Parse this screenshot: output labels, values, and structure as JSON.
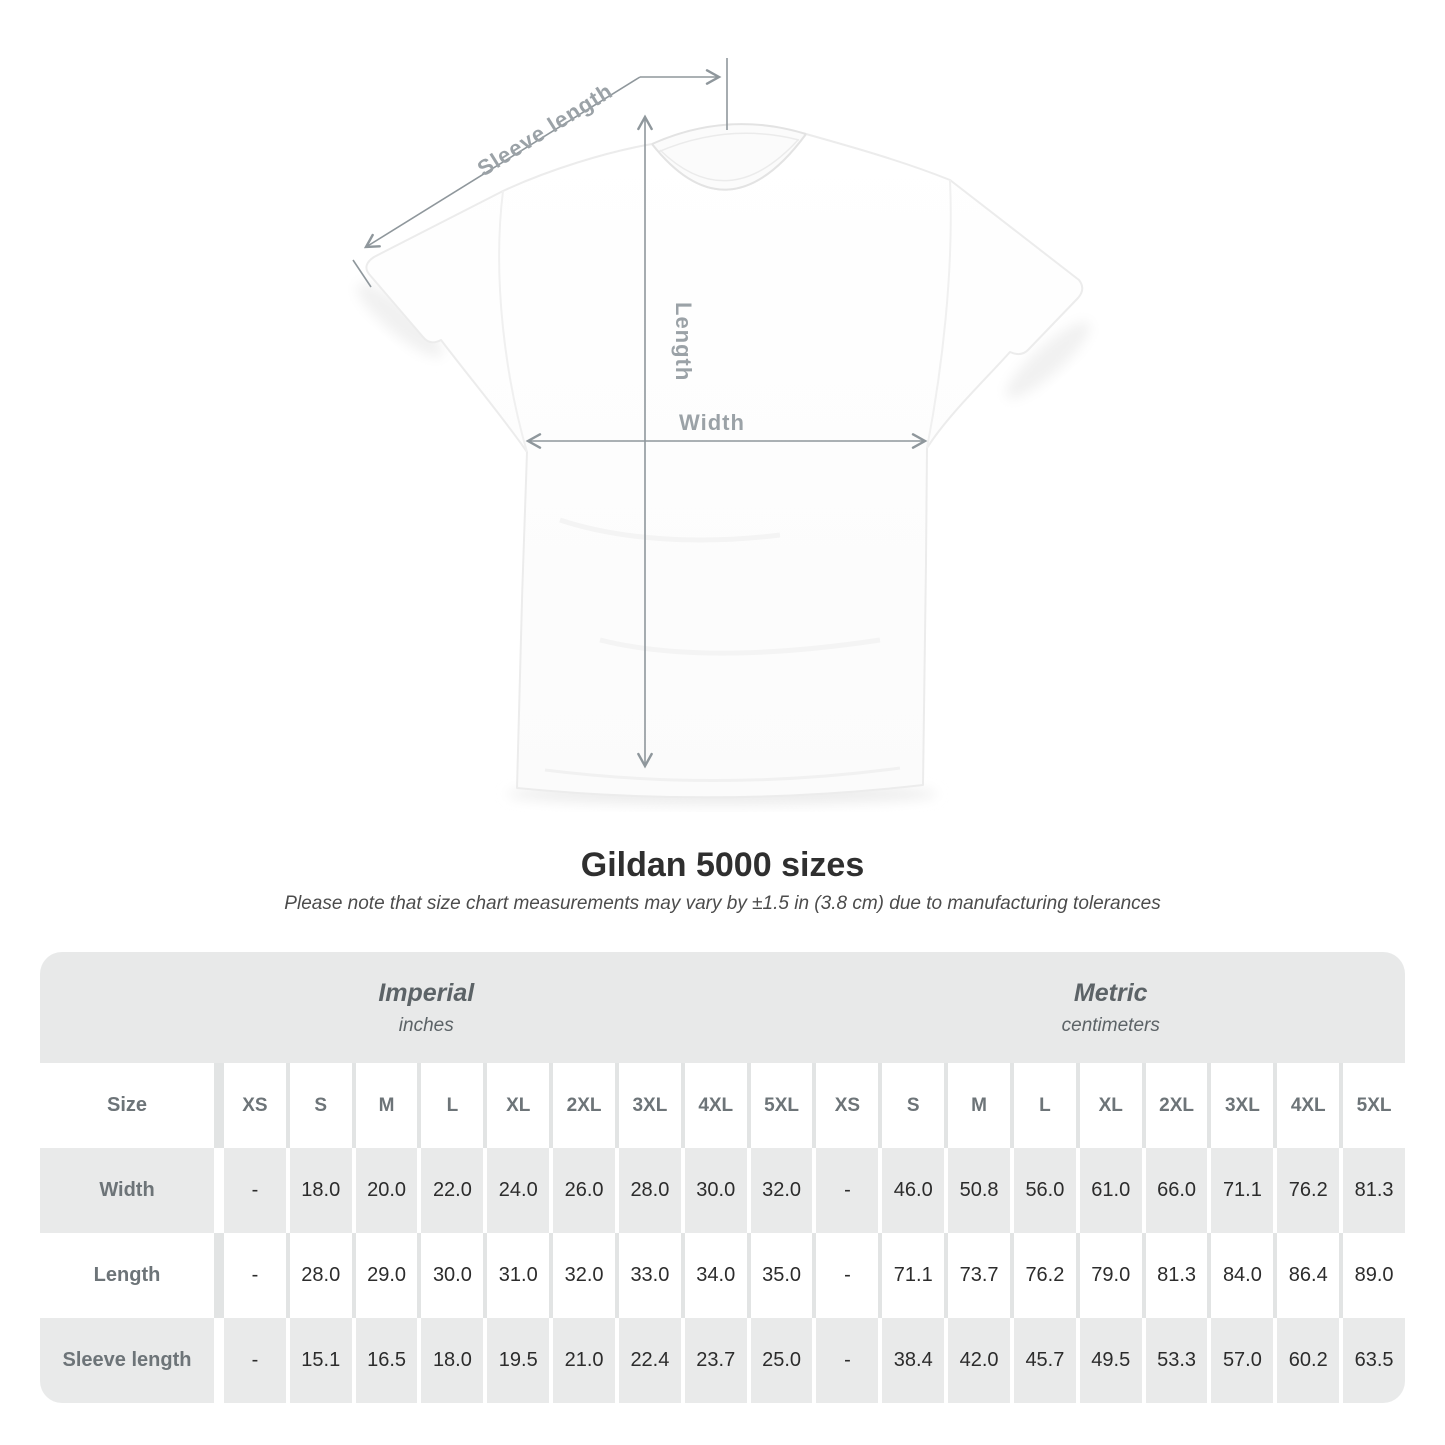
{
  "diagram": {
    "sleeve_length_label": "Sleeve length",
    "length_label": "Length",
    "width_label": "Width"
  },
  "title": "Gildan 5000 sizes",
  "subtitle": "Please note that size chart measurements may vary by ±1.5 in (3.8 cm) due to manufacturing tolerances",
  "table": {
    "unit_groups": [
      {
        "name": "Imperial",
        "unit": "inches"
      },
      {
        "name": "Metric",
        "unit": "centimeters"
      }
    ],
    "size_label": "Size",
    "sizes": [
      "XS",
      "S",
      "M",
      "L",
      "XL",
      "2XL",
      "3XL",
      "4XL",
      "5XL"
    ],
    "rows": [
      {
        "label": "Width",
        "imperial": [
          "-",
          "18.0",
          "20.0",
          "22.0",
          "24.0",
          "26.0",
          "28.0",
          "30.0",
          "32.0"
        ],
        "metric": [
          "-",
          "46.0",
          "50.8",
          "56.0",
          "61.0",
          "66.0",
          "71.1",
          "76.2",
          "81.3"
        ]
      },
      {
        "label": "Length",
        "imperial": [
          "-",
          "28.0",
          "29.0",
          "30.0",
          "31.0",
          "32.0",
          "33.0",
          "34.0",
          "35.0"
        ],
        "metric": [
          "-",
          "71.1",
          "73.7",
          "76.2",
          "79.0",
          "81.3",
          "84.0",
          "86.4",
          "89.0"
        ]
      },
      {
        "label": "Sleeve length",
        "imperial": [
          "-",
          "15.1",
          "16.5",
          "18.0",
          "19.5",
          "21.0",
          "22.4",
          "23.7",
          "25.0"
        ],
        "metric": [
          "-",
          "38.4",
          "42.0",
          "45.7",
          "49.5",
          "53.3",
          "57.0",
          "60.2",
          "63.5"
        ]
      }
    ]
  },
  "colors": {
    "table_cell_gray": "#e9eaea",
    "table_header_gray": "#e8e9e9",
    "dimension_line_gray": "#8f979c",
    "dimension_label_gray": "#9ba2a7",
    "title_dark": "#2f2f2f"
  },
  "chart_data": {
    "type": "table",
    "title": "Gildan 5000 sizes",
    "note": "Measurements may vary by ±1.5 in (3.8 cm) due to manufacturing tolerances",
    "columns": [
      "XS",
      "S",
      "M",
      "L",
      "XL",
      "2XL",
      "3XL",
      "4XL",
      "5XL"
    ],
    "units": [
      "inches",
      "centimeters"
    ],
    "rows_imperial": [
      {
        "label": "Width",
        "values": [
          null,
          18.0,
          20.0,
          22.0,
          24.0,
          26.0,
          28.0,
          30.0,
          32.0
        ]
      },
      {
        "label": "Length",
        "values": [
          null,
          28.0,
          29.0,
          30.0,
          31.0,
          32.0,
          33.0,
          34.0,
          35.0
        ]
      },
      {
        "label": "Sleeve length",
        "values": [
          null,
          15.1,
          16.5,
          18.0,
          19.5,
          21.0,
          22.4,
          23.7,
          25.0
        ]
      }
    ],
    "rows_metric": [
      {
        "label": "Width",
        "values": [
          null,
          46.0,
          50.8,
          56.0,
          61.0,
          66.0,
          71.1,
          76.2,
          81.3
        ]
      },
      {
        "label": "Length",
        "values": [
          null,
          71.1,
          73.7,
          76.2,
          79.0,
          81.3,
          84.0,
          86.4,
          89.0
        ]
      },
      {
        "label": "Sleeve length",
        "values": [
          null,
          38.4,
          42.0,
          45.7,
          49.5,
          53.3,
          57.0,
          60.2,
          63.5
        ]
      }
    ]
  }
}
